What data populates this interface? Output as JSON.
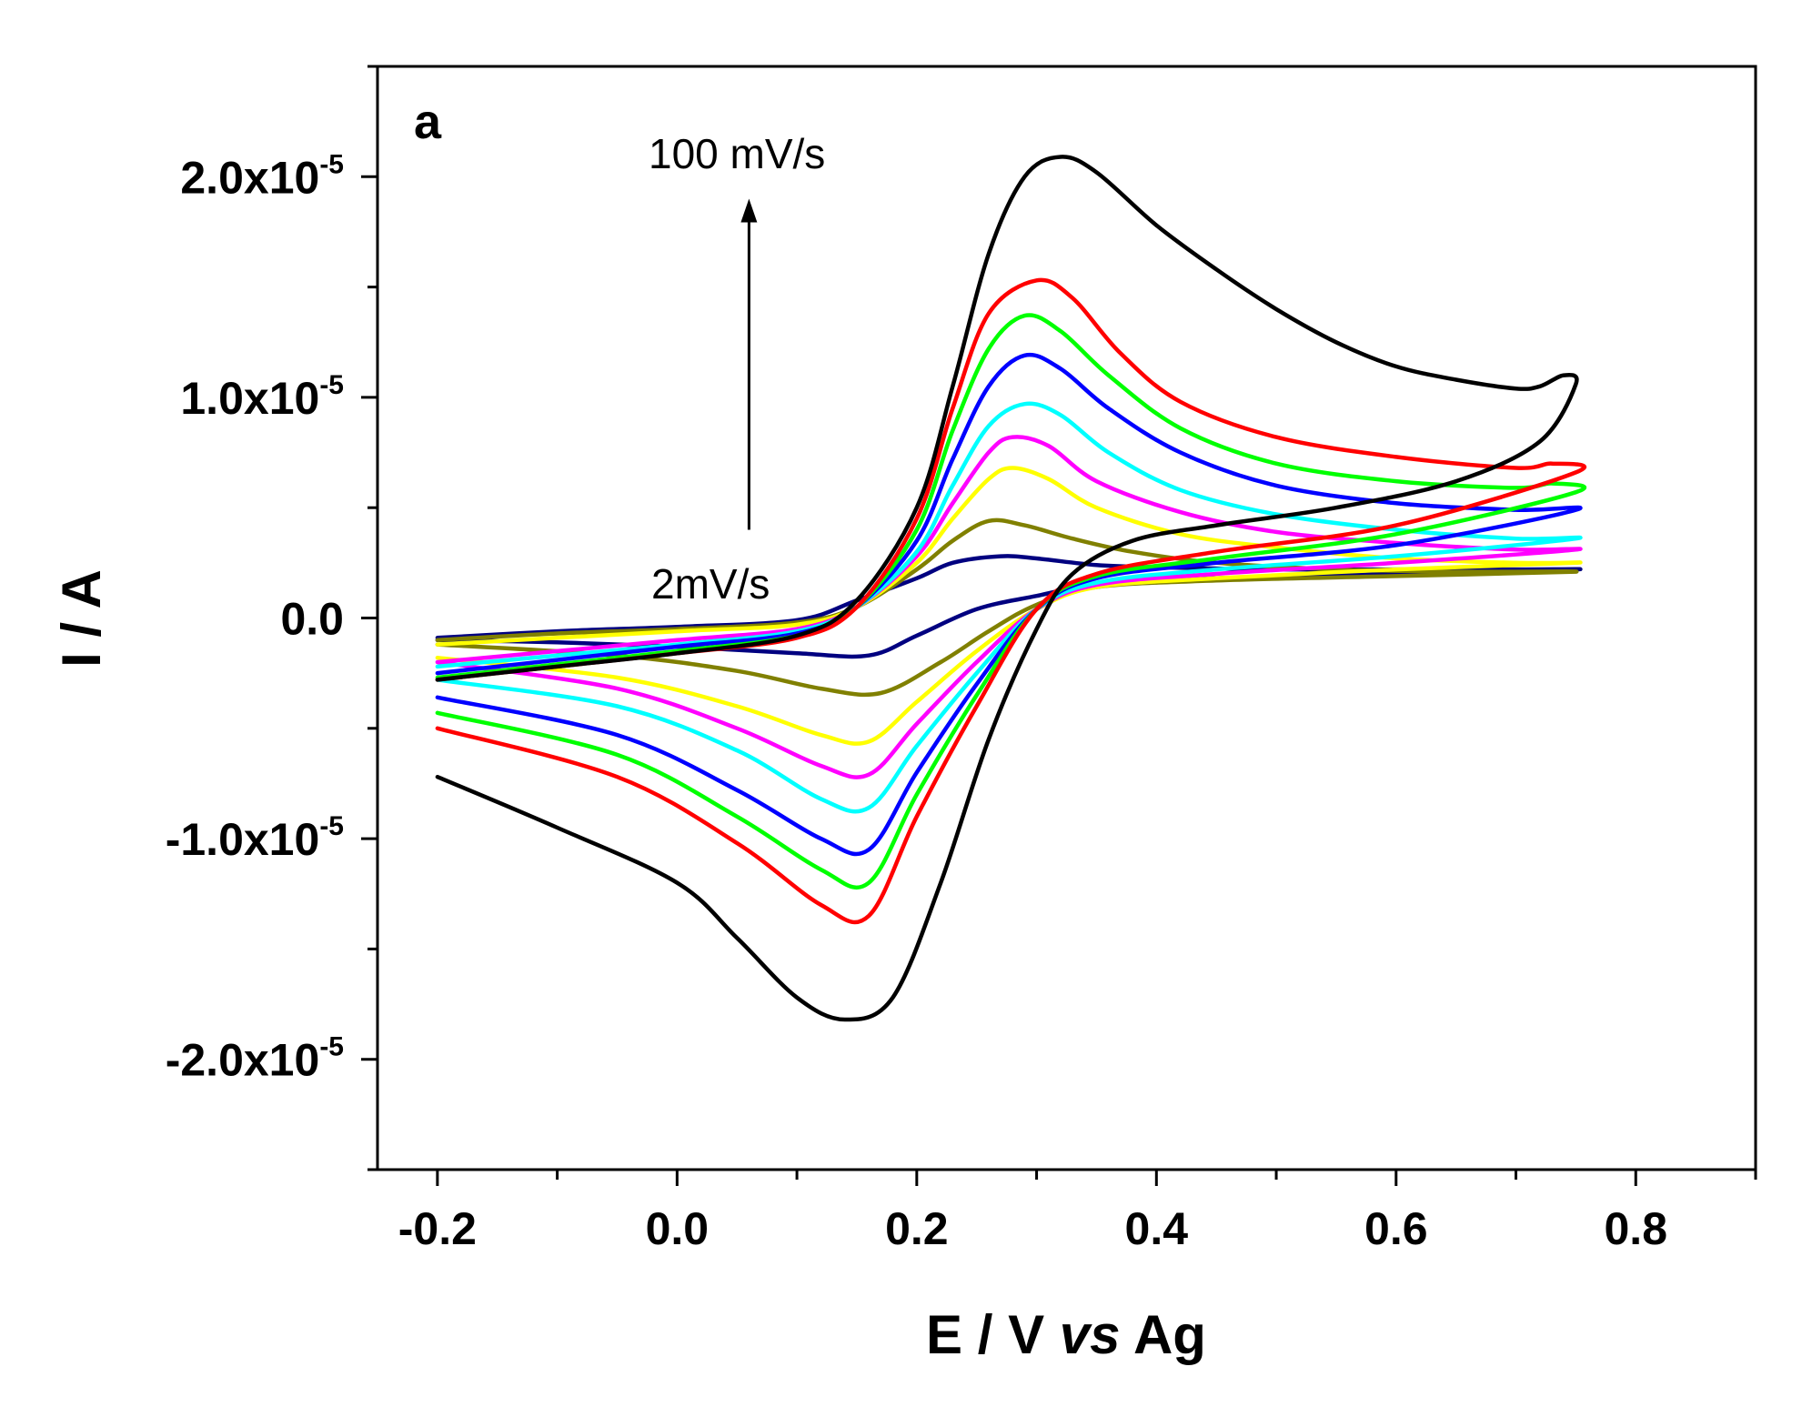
{
  "chart_data": {
    "type": "line",
    "panel_label": "a",
    "xlabel_parts": [
      "E / V ",
      "vs",
      " Ag"
    ],
    "ylabel": "I / A",
    "xlim": [
      -0.25,
      0.9
    ],
    "ylim": [
      -2.5e-05,
      2.5e-05
    ],
    "x_ticks": [
      -0.2,
      0.0,
      0.2,
      0.4,
      0.6,
      0.8
    ],
    "x_tick_labels": [
      "-0.2",
      "0.0",
      "0.2",
      "0.4",
      "0.6",
      "0.8"
    ],
    "x_minor_ticks": [
      -0.1,
      0.1,
      0.3,
      0.5,
      0.7,
      0.9
    ],
    "y_ticks": [
      -2e-05,
      -1e-05,
      0.0,
      1e-05,
      2e-05
    ],
    "y_tick_labels": [
      {
        "base": "-2.0x10",
        "exp": "-5"
      },
      {
        "base": "-1.0x10",
        "exp": "-5"
      },
      {
        "base": "0.0",
        "exp": ""
      },
      {
        "base": "1.0x10",
        "exp": "-5"
      },
      {
        "base": "2.0x10",
        "exp": "-5"
      }
    ],
    "y_minor_ticks": [
      -2.5e-05,
      -1.5e-05,
      -5e-06,
      5e-06,
      1.5e-05,
      2.5e-05
    ],
    "grid": false,
    "annotations": {
      "top": "100 mV/s",
      "bottom": "2mV/s",
      "arrow_x": 0.06,
      "arrow_from_y": 4e-06,
      "arrow_to_y": 1.9e-05
    },
    "series": [
      {
        "color": "#000080",
        "forward": [
          [
            -0.2,
            -9e-07
          ],
          [
            -0.1,
            -6e-07
          ],
          [
            0.0,
            -4e-07
          ],
          [
            0.1,
            -1e-07
          ],
          [
            0.15,
            8e-07
          ],
          [
            0.2,
            1.8e-06
          ],
          [
            0.23,
            2.5e-06
          ],
          [
            0.27,
            2.8e-06
          ],
          [
            0.3,
            2.7e-06
          ],
          [
            0.35,
            2.4e-06
          ],
          [
            0.4,
            2.3e-06
          ],
          [
            0.5,
            2.2e-06
          ],
          [
            0.6,
            2.2e-06
          ],
          [
            0.7,
            2.2e-06
          ],
          [
            0.75,
            2.2e-06
          ]
        ],
        "reverse": [
          [
            0.75,
            2.2e-06
          ],
          [
            0.6,
            2e-06
          ],
          [
            0.45,
            1.8e-06
          ],
          [
            0.35,
            1.5e-06
          ],
          [
            0.3,
            1e-06
          ],
          [
            0.25,
            4e-07
          ],
          [
            0.2,
            -8e-07
          ],
          [
            0.16,
            -1.7e-06
          ],
          [
            0.1,
            -1.6e-06
          ],
          [
            0.0,
            -1.3e-06
          ],
          [
            -0.1,
            -1.1e-06
          ],
          [
            -0.2,
            -1e-06
          ]
        ]
      },
      {
        "color": "#808000",
        "forward": [
          [
            -0.2,
            -1e-06
          ],
          [
            -0.1,
            -7e-07
          ],
          [
            0.0,
            -5e-07
          ],
          [
            0.1,
            -2e-07
          ],
          [
            0.15,
            5e-07
          ],
          [
            0.2,
            2.2e-06
          ],
          [
            0.23,
            3.5e-06
          ],
          [
            0.26,
            4.4e-06
          ],
          [
            0.29,
            4.2e-06
          ],
          [
            0.33,
            3.6e-06
          ],
          [
            0.38,
            3e-06
          ],
          [
            0.45,
            2.5e-06
          ],
          [
            0.55,
            2.2e-06
          ],
          [
            0.65,
            2.1e-06
          ],
          [
            0.75,
            2.1e-06
          ]
        ],
        "reverse": [
          [
            0.75,
            2.1e-06
          ],
          [
            0.6,
            1.9e-06
          ],
          [
            0.45,
            1.7e-06
          ],
          [
            0.35,
            1.4e-06
          ],
          [
            0.3,
            6e-07
          ],
          [
            0.26,
            -6e-07
          ],
          [
            0.22,
            -2e-06
          ],
          [
            0.17,
            -3.4e-06
          ],
          [
            0.12,
            -3.2e-06
          ],
          [
            0.05,
            -2.4e-06
          ],
          [
            -0.05,
            -1.7e-06
          ],
          [
            -0.2,
            -1.2e-06
          ]
        ]
      },
      {
        "color": "#ffff00",
        "forward": [
          [
            -0.2,
            -1.2e-06
          ],
          [
            -0.1,
            -9e-07
          ],
          [
            0.0,
            -6e-07
          ],
          [
            0.1,
            -3e-07
          ],
          [
            0.15,
            5e-07
          ],
          [
            0.2,
            2.5e-06
          ],
          [
            0.23,
            4.5e-06
          ],
          [
            0.26,
            6.3e-06
          ],
          [
            0.28,
            6.8e-06
          ],
          [
            0.31,
            6.3e-06
          ],
          [
            0.35,
            5e-06
          ],
          [
            0.42,
            3.8e-06
          ],
          [
            0.5,
            3.2e-06
          ],
          [
            0.6,
            2.7e-06
          ],
          [
            0.7,
            2.5e-06
          ],
          [
            0.75,
            2.5e-06
          ]
        ],
        "reverse": [
          [
            0.75,
            2.6e-06
          ],
          [
            0.6,
            2.2e-06
          ],
          [
            0.45,
            1.8e-06
          ],
          [
            0.35,
            1.4e-06
          ],
          [
            0.3,
            4e-07
          ],
          [
            0.25,
            -1.5e-06
          ],
          [
            0.2,
            -3.8e-06
          ],
          [
            0.16,
            -5.6e-06
          ],
          [
            0.12,
            -5.3e-06
          ],
          [
            0.05,
            -4e-06
          ],
          [
            -0.05,
            -2.7e-06
          ],
          [
            -0.2,
            -1.8e-06
          ]
        ]
      },
      {
        "color": "#ff00ff",
        "forward": [
          [
            -0.2,
            -2e-06
          ],
          [
            -0.1,
            -1.5e-06
          ],
          [
            0.0,
            -1e-06
          ],
          [
            0.1,
            -5e-07
          ],
          [
            0.15,
            5e-07
          ],
          [
            0.2,
            2.8e-06
          ],
          [
            0.23,
            5.2e-06
          ],
          [
            0.26,
            7.5e-06
          ],
          [
            0.28,
            8.2e-06
          ],
          [
            0.31,
            7.8e-06
          ],
          [
            0.35,
            6.2e-06
          ],
          [
            0.42,
            4.8e-06
          ],
          [
            0.5,
            3.9e-06
          ],
          [
            0.6,
            3.4e-06
          ],
          [
            0.7,
            3.1e-06
          ],
          [
            0.75,
            3.1e-06
          ]
        ],
        "reverse": [
          [
            0.75,
            3.3e-06
          ],
          [
            0.6,
            2.5e-06
          ],
          [
            0.45,
            2e-06
          ],
          [
            0.35,
            1.5e-06
          ],
          [
            0.3,
            4e-07
          ],
          [
            0.25,
            -2e-06
          ],
          [
            0.2,
            -4.8e-06
          ],
          [
            0.16,
            -7.1e-06
          ],
          [
            0.12,
            -6.7e-06
          ],
          [
            0.05,
            -5e-06
          ],
          [
            -0.05,
            -3.2e-06
          ],
          [
            -0.2,
            -2e-06
          ]
        ]
      },
      {
        "color": "#00ffff",
        "forward": [
          [
            -0.2,
            -2.2e-06
          ],
          [
            -0.1,
            -1.7e-06
          ],
          [
            0.0,
            -1.2e-06
          ],
          [
            0.1,
            -6e-07
          ],
          [
            0.15,
            5e-07
          ],
          [
            0.2,
            3e-06
          ],
          [
            0.23,
            6e-06
          ],
          [
            0.26,
            8.7e-06
          ],
          [
            0.29,
            9.7e-06
          ],
          [
            0.32,
            9.2e-06
          ],
          [
            0.36,
            7.5e-06
          ],
          [
            0.42,
            5.8e-06
          ],
          [
            0.5,
            4.7e-06
          ],
          [
            0.6,
            4e-06
          ],
          [
            0.7,
            3.6e-06
          ],
          [
            0.75,
            3.6e-06
          ]
        ],
        "reverse": [
          [
            0.75,
            3.8e-06
          ],
          [
            0.6,
            2.8e-06
          ],
          [
            0.45,
            2.2e-06
          ],
          [
            0.35,
            1.6e-06
          ],
          [
            0.3,
            4e-07
          ],
          [
            0.25,
            -2.5e-06
          ],
          [
            0.2,
            -5.8e-06
          ],
          [
            0.16,
            -8.6e-06
          ],
          [
            0.12,
            -8.2e-06
          ],
          [
            0.05,
            -6e-06
          ],
          [
            -0.05,
            -4e-06
          ],
          [
            -0.2,
            -2.8e-06
          ]
        ]
      },
      {
        "color": "#0000ff",
        "forward": [
          [
            -0.2,
            -2.5e-06
          ],
          [
            -0.1,
            -1.9e-06
          ],
          [
            0.0,
            -1.3e-06
          ],
          [
            0.1,
            -7e-07
          ],
          [
            0.15,
            5e-07
          ],
          [
            0.2,
            3.5e-06
          ],
          [
            0.23,
            7.2e-06
          ],
          [
            0.26,
            1.05e-05
          ],
          [
            0.29,
            1.19e-05
          ],
          [
            0.32,
            1.13e-05
          ],
          [
            0.36,
            9.5e-06
          ],
          [
            0.42,
            7.5e-06
          ],
          [
            0.5,
            6e-06
          ],
          [
            0.6,
            5.2e-06
          ],
          [
            0.7,
            4.9e-06
          ],
          [
            0.75,
            4.9e-06
          ]
        ],
        "reverse": [
          [
            0.75,
            4.9e-06
          ],
          [
            0.6,
            3.3e-06
          ],
          [
            0.45,
            2.5e-06
          ],
          [
            0.35,
            1.8e-06
          ],
          [
            0.3,
            4e-07
          ],
          [
            0.25,
            -3e-06
          ],
          [
            0.2,
            -7e-06
          ],
          [
            0.16,
            -1.05e-05
          ],
          [
            0.12,
            -1e-05
          ],
          [
            0.05,
            -7.8e-06
          ],
          [
            -0.05,
            -5.3e-06
          ],
          [
            -0.2,
            -3.6e-06
          ]
        ]
      },
      {
        "color": "#00ff00",
        "forward": [
          [
            -0.2,
            -2.7e-06
          ],
          [
            -0.1,
            -2.1e-06
          ],
          [
            0.0,
            -1.5e-06
          ],
          [
            0.1,
            -8e-07
          ],
          [
            0.15,
            5e-07
          ],
          [
            0.2,
            4e-06
          ],
          [
            0.23,
            8.5e-06
          ],
          [
            0.26,
            1.22e-05
          ],
          [
            0.29,
            1.37e-05
          ],
          [
            0.32,
            1.3e-05
          ],
          [
            0.36,
            1.1e-05
          ],
          [
            0.42,
            8.6e-06
          ],
          [
            0.5,
            7e-06
          ],
          [
            0.6,
            6.2e-06
          ],
          [
            0.7,
            5.9e-06
          ],
          [
            0.73,
            6.1e-06
          ],
          [
            0.75,
            5.7e-06
          ]
        ],
        "reverse": [
          [
            0.75,
            5.7e-06
          ],
          [
            0.6,
            3.8e-06
          ],
          [
            0.45,
            2.7e-06
          ],
          [
            0.35,
            1.9e-06
          ],
          [
            0.3,
            4e-07
          ],
          [
            0.25,
            -3.5e-06
          ],
          [
            0.2,
            -8e-06
          ],
          [
            0.16,
            -1.2e-05
          ],
          [
            0.12,
            -1.14e-05
          ],
          [
            0.05,
            -9e-06
          ],
          [
            -0.05,
            -6.2e-06
          ],
          [
            -0.2,
            -4.3e-06
          ]
        ]
      },
      {
        "color": "#ff0000",
        "forward": [
          [
            -0.2,
            -2.8e-06
          ],
          [
            -0.1,
            -2.2e-06
          ],
          [
            0.0,
            -1.6e-06
          ],
          [
            0.1,
            -9e-07
          ],
          [
            0.15,
            5e-07
          ],
          [
            0.2,
            4.5e-06
          ],
          [
            0.23,
            9.5e-06
          ],
          [
            0.26,
            1.38e-05
          ],
          [
            0.3,
            1.53e-05
          ],
          [
            0.33,
            1.45e-05
          ],
          [
            0.37,
            1.2e-05
          ],
          [
            0.42,
            9.8e-06
          ],
          [
            0.5,
            8.2e-06
          ],
          [
            0.6,
            7.3e-06
          ],
          [
            0.7,
            6.8e-06
          ],
          [
            0.73,
            7e-06
          ],
          [
            0.75,
            6.6e-06
          ]
        ],
        "reverse": [
          [
            0.75,
            6.6e-06
          ],
          [
            0.6,
            4.2e-06
          ],
          [
            0.45,
            3e-06
          ],
          [
            0.35,
            2e-06
          ],
          [
            0.3,
            4e-07
          ],
          [
            0.25,
            -4e-06
          ],
          [
            0.2,
            -9e-06
          ],
          [
            0.16,
            -1.35e-05
          ],
          [
            0.12,
            -1.3e-05
          ],
          [
            0.05,
            -1.02e-05
          ],
          [
            -0.05,
            -7.2e-06
          ],
          [
            -0.2,
            -5e-06
          ]
        ]
      },
      {
        "color": "#000000",
        "forward": [
          [
            -0.2,
            -2.8e-06
          ],
          [
            -0.1,
            -2.2e-06
          ],
          [
            0.0,
            -1.6e-06
          ],
          [
            0.1,
            -8e-07
          ],
          [
            0.15,
            8e-07
          ],
          [
            0.2,
            5e-06
          ],
          [
            0.23,
            1.05e-05
          ],
          [
            0.26,
            1.65e-05
          ],
          [
            0.29,
            2e-05
          ],
          [
            0.32,
            2.09e-05
          ],
          [
            0.35,
            2.02e-05
          ],
          [
            0.4,
            1.78e-05
          ],
          [
            0.45,
            1.58e-05
          ],
          [
            0.5,
            1.4e-05
          ],
          [
            0.55,
            1.25e-05
          ],
          [
            0.6,
            1.14e-05
          ],
          [
            0.65,
            1.08e-05
          ],
          [
            0.7,
            1.04e-05
          ],
          [
            0.72,
            1.05e-05
          ],
          [
            0.74,
            1.1e-05
          ],
          [
            0.75,
            1.06e-05
          ]
        ],
        "reverse": [
          [
            0.75,
            1.06e-05
          ],
          [
            0.72,
            8e-06
          ],
          [
            0.65,
            6.2e-06
          ],
          [
            0.55,
            5e-06
          ],
          [
            0.45,
            4.2e-06
          ],
          [
            0.38,
            3.5e-06
          ],
          [
            0.33,
            2e-06
          ],
          [
            0.3,
            -5e-07
          ],
          [
            0.26,
            -5.5e-06
          ],
          [
            0.22,
            -1.2e-05
          ],
          [
            0.18,
            -1.72e-05
          ],
          [
            0.14,
            -1.82e-05
          ],
          [
            0.1,
            -1.72e-05
          ],
          [
            0.05,
            -1.45e-05
          ],
          [
            0.0,
            -1.2e-05
          ],
          [
            -0.1,
            -9.5e-06
          ],
          [
            -0.2,
            -7.2e-06
          ]
        ]
      }
    ]
  }
}
